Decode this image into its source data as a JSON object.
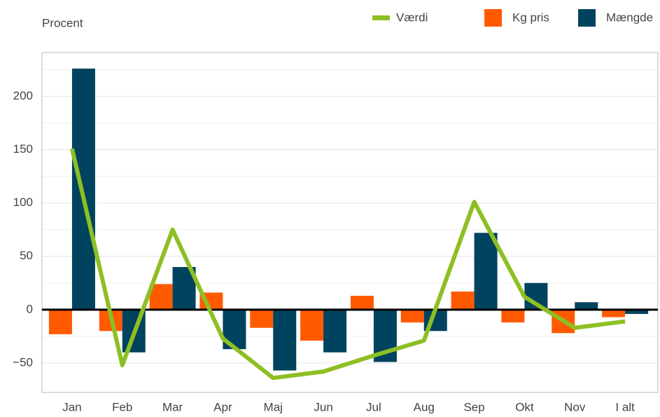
{
  "chart_data": {
    "type": "bar_line",
    "y_axis_label": "Procent",
    "categories": [
      "Jan",
      "Feb",
      "Mar",
      "Apr",
      "Maj",
      "Jun",
      "Jul",
      "Aug",
      "Sep",
      "Okt",
      "Nov",
      "I alt"
    ],
    "series": [
      {
        "name": "Værdi",
        "kind": "line",
        "color": "#8dbf24",
        "values": [
          151,
          -52,
          75,
          -27,
          -64,
          -58,
          -43,
          -29,
          101,
          12,
          -17,
          -11
        ]
      },
      {
        "name": "Kg pris",
        "kind": "bar",
        "color": "#ff5a00",
        "values": [
          -23,
          -20,
          24,
          16,
          -17,
          -29,
          13,
          -12,
          17,
          -12,
          -22,
          -7
        ]
      },
      {
        "name": "Mængde",
        "kind": "bar",
        "color": "#00435e",
        "values": [
          226,
          -40,
          40,
          -37,
          -57,
          -40,
          -49,
          -20,
          72,
          25,
          7,
          -4
        ]
      }
    ],
    "ylim": [
      -77.6,
      241
    ],
    "yticks": [
      {
        "value": -50,
        "label": "−50"
      },
      0,
      50,
      100,
      150,
      200
    ],
    "minor_yticks": [
      -25,
      25,
      75,
      125,
      175,
      225
    ],
    "grid": true
  }
}
